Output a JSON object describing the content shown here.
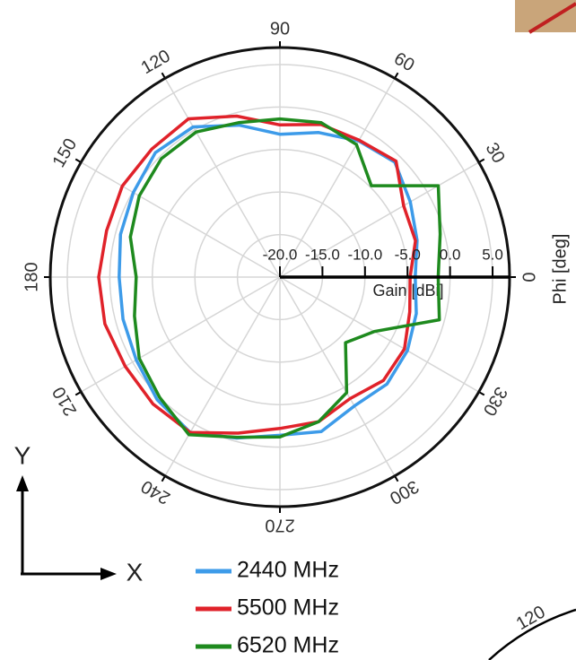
{
  "chart_data": {
    "type": "polar",
    "angle_label": "Phi [deg]",
    "radial_label": "Gain [dBi]",
    "theta": [
      0,
      15,
      30,
      45,
      60,
      75,
      90,
      105,
      120,
      135,
      150,
      165,
      180,
      195,
      210,
      225,
      240,
      255,
      270,
      285,
      300,
      315,
      330,
      345
    ],
    "series": [
      {
        "name": "2440 MHz",
        "color": "#3d9be9",
        "values": [
          -4.1,
          -3.3,
          -2.3,
          -0.9,
          -1.5,
          -2.4,
          -3.2,
          -1.5,
          0.4,
          0.7,
          -0.1,
          -0.6,
          -1.1,
          -0.9,
          -0.5,
          0.4,
          1.1,
          -0.4,
          -1.4,
          -1.2,
          -2.5,
          -2.2,
          -2.7,
          -3.4
        ]
      },
      {
        "name": "5500 MHz",
        "color": "#e0222a",
        "values": [
          -4.7,
          -3.5,
          -3.2,
          -0.7,
          -1.4,
          -1.4,
          -2.1,
          -0.4,
          1.5,
          1.3,
          1.4,
          1.1,
          1.3,
          1.3,
          1.0,
          1.1,
          1.1,
          -1.0,
          -2.2,
          -2.4,
          -3.5,
          -2.8,
          -3.1,
          -4.2
        ]
      },
      {
        "name": "6520 MHz",
        "color": "#1e8a1e",
        "values": [
          -1.4,
          -0.5,
          1.5,
          -4.8,
          -2.0,
          -1.2,
          -1.4,
          -1.2,
          -0.3,
          -0.3,
          -0.9,
          -1.8,
          -3.1,
          -2.3,
          -0.9,
          0.0,
          1.4,
          -0.5,
          -1.2,
          -2.4,
          -4.3,
          -9.1,
          -7.2,
          -0.6
        ]
      }
    ],
    "rlim": [
      -20,
      7
    ],
    "rticks": [
      {
        "value": -20,
        "label": "-20.0"
      },
      {
        "value": -15,
        "label": "-15.0"
      },
      {
        "value": -10,
        "label": "-10.0"
      },
      {
        "value": -5,
        "label": "-5.0"
      },
      {
        "value": 0,
        "label": "0.0"
      },
      {
        "value": 5,
        "label": "5.0"
      }
    ],
    "thetaticks": [
      0,
      30,
      60,
      90,
      120,
      150,
      180,
      210,
      240,
      270,
      300,
      330
    ],
    "grid": true
  },
  "axes_icon": {
    "y": "Y",
    "x": "X"
  },
  "inset_label": "120"
}
